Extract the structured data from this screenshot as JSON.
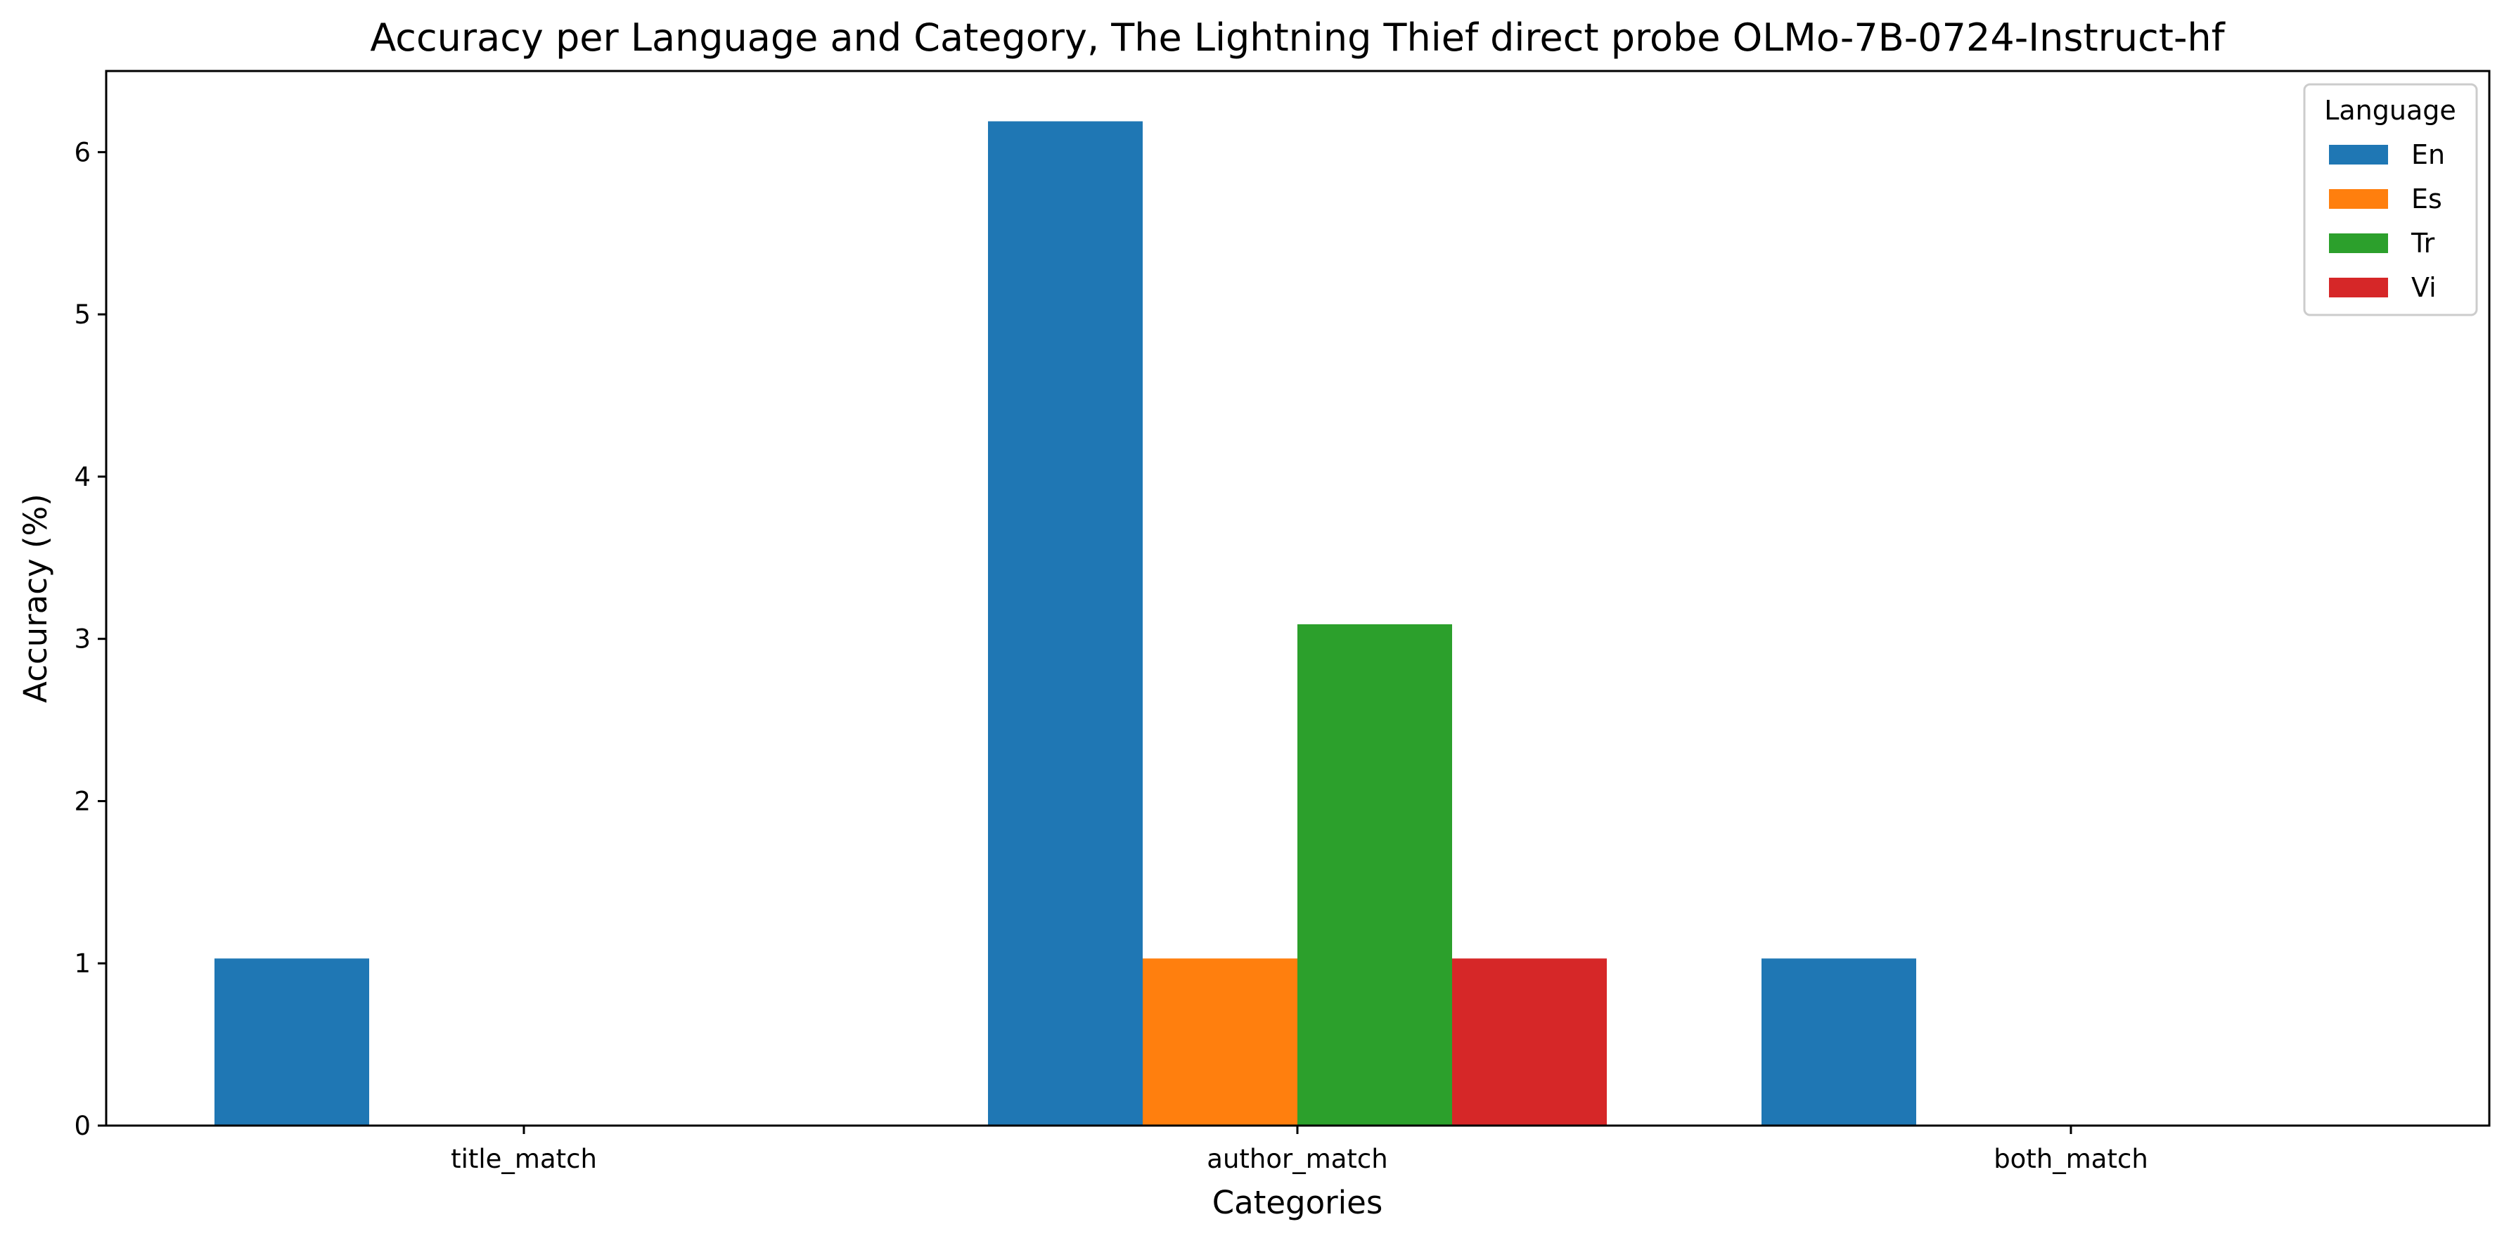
{
  "chart_data": {
    "type": "bar",
    "title": "Accuracy per Language and Category, The Lightning Thief direct probe OLMo-7B-0724-Instruct-hf",
    "xlabel": "Categories",
    "ylabel": "Accuracy (%)",
    "categories": [
      "title_match",
      "author_match",
      "both_match"
    ],
    "ylim": [
      0,
      6.5
    ],
    "yticks": [
      0,
      1,
      2,
      3,
      4,
      5,
      6
    ],
    "grid": false,
    "legend": {
      "title": "Language",
      "placement": "top-right"
    },
    "series": [
      {
        "name": "En",
        "color": "#1f77b4",
        "values": [
          1.03,
          6.19,
          1.03
        ]
      },
      {
        "name": "Es",
        "color": "#ff7f0e",
        "values": [
          0,
          1.03,
          0
        ]
      },
      {
        "name": "Tr",
        "color": "#2ca02c",
        "values": [
          0,
          3.09,
          0
        ]
      },
      {
        "name": "Vi",
        "color": "#d62728",
        "values": [
          0,
          1.03,
          0
        ]
      }
    ]
  }
}
